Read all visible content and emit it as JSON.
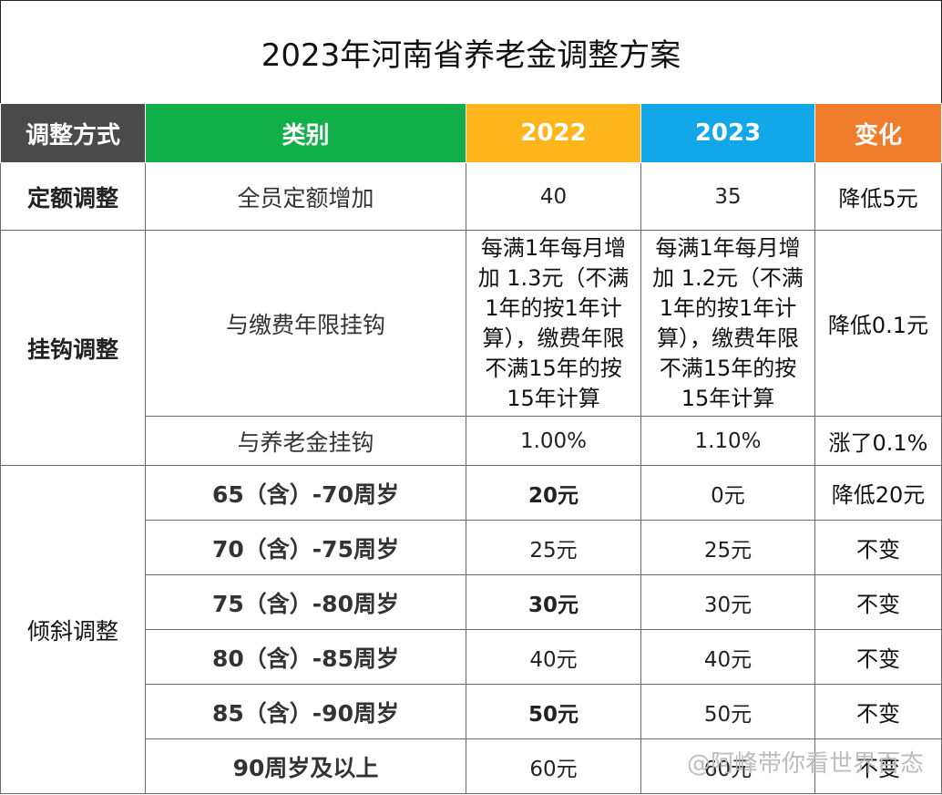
{
  "title": "2023年河南省养老金调整方案",
  "headers": [
    "调整方式",
    "类别",
    "2022",
    "2023",
    "变化"
  ],
  "header_colors": [
    "#4a4a4a",
    "#12b04a",
    "#ffb61c",
    "#12a8e8",
    "#f07d2c"
  ],
  "groups": {
    "fixed": "定额调整",
    "linked": "挂钩调整",
    "tilt": "倾斜调整"
  },
  "rows": {
    "r1": {
      "category": "全员定额增加",
      "v2022": "40",
      "v2023": "35",
      "change": "降低5元"
    },
    "r2": {
      "category": "与缴费年限挂钩",
      "v2022": "每满1年每月增加 1.3元（不满1年的按1年计算），缴费年限不满15年的按15年计算",
      "v2023": "每满1年每月增加 1.2元（不满1年的按1年计算），缴费年限不满15年的按15年计算",
      "change": "降低0.1元"
    },
    "r3": {
      "category": "与养老金挂钩",
      "v2022": "1.00%",
      "v2023": "1.10%",
      "change": "涨了0.1%"
    },
    "r4": {
      "category": "65（含）-70周岁",
      "v2022": "20元",
      "v2023": "0元",
      "change": "降低20元"
    },
    "r5": {
      "category": "70（含）-75周岁",
      "v2022": "25元",
      "v2023": "25元",
      "change": "不变"
    },
    "r6": {
      "category": "75（含）-80周岁",
      "v2022": "30元",
      "v2023": "30元",
      "change": "不变"
    },
    "r7": {
      "category": "80（含）-85周岁",
      "v2022": "40元",
      "v2023": "40元",
      "change": "不变"
    },
    "r8": {
      "category": "85（含）-90周岁",
      "v2022": "50元",
      "v2023": "50元",
      "change": "不变"
    },
    "r9": {
      "category": "90周岁及以上",
      "v2022": "60元",
      "v2023": "60元",
      "change": "不变"
    }
  },
  "watermark": "@阿峰带你看世界百态"
}
